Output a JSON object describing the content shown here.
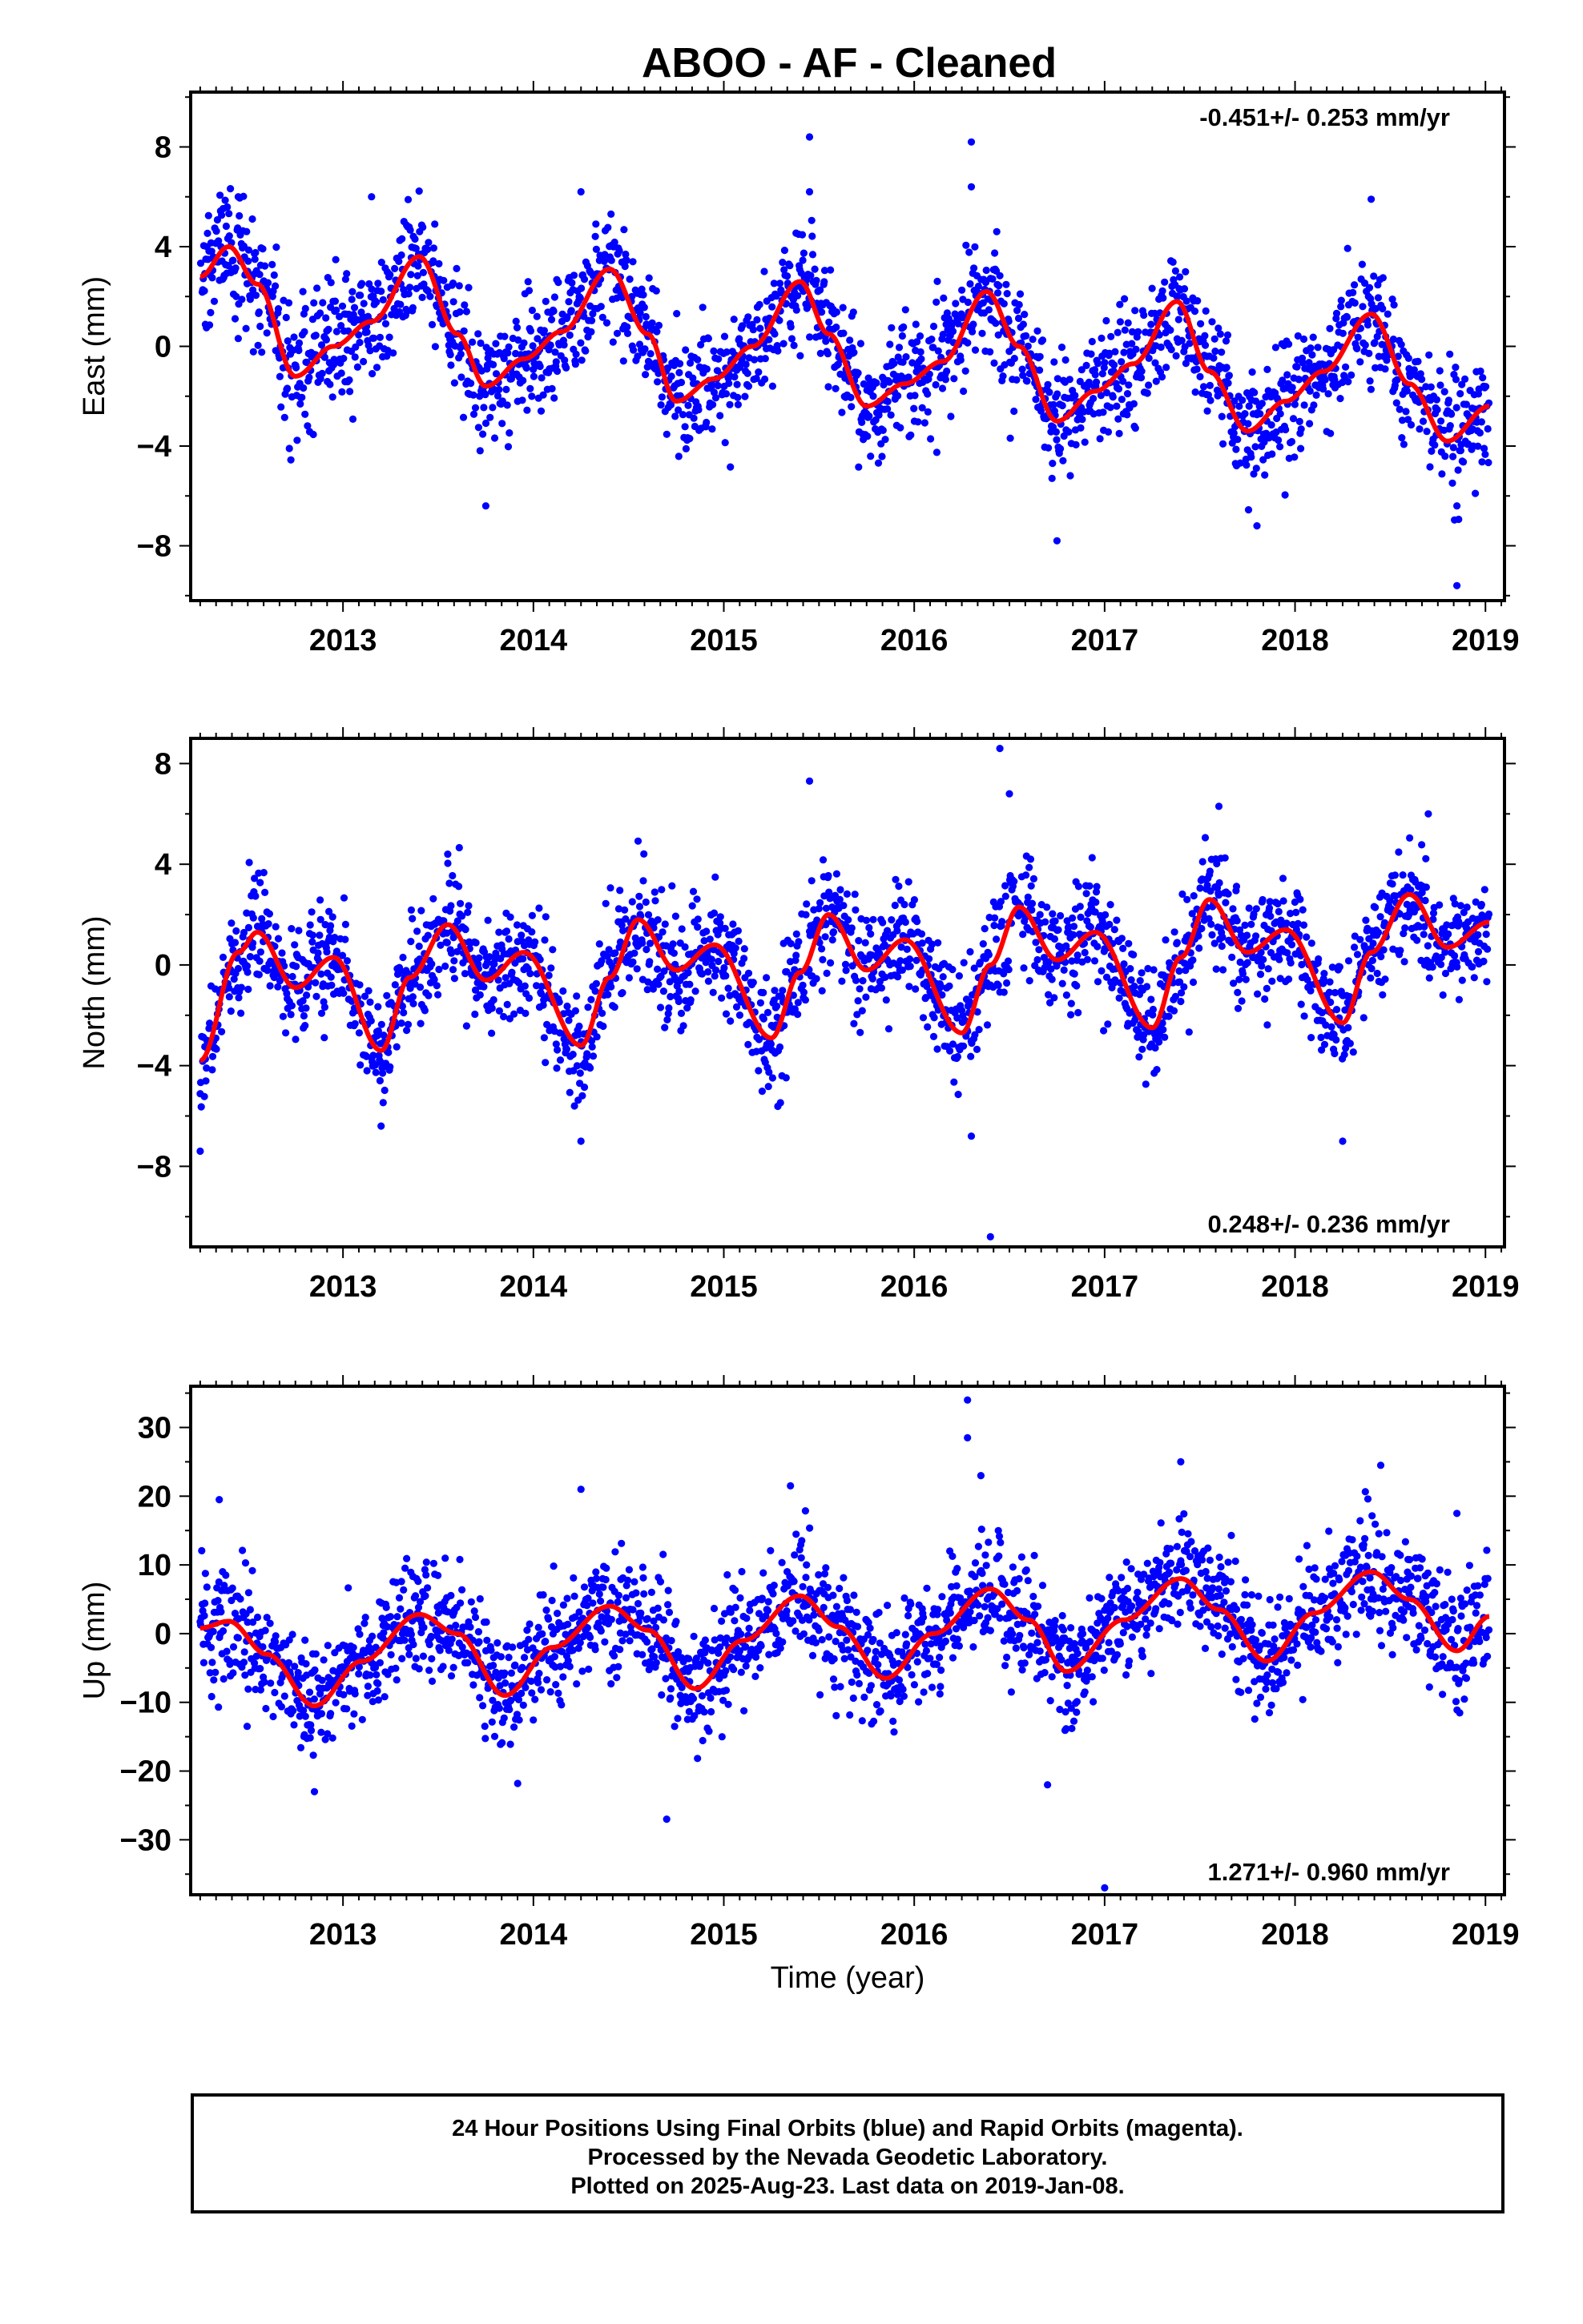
{
  "title": "ABOO  - AF - Cleaned",
  "xlabel": "Time (year)",
  "footer": {
    "line1": "24 Hour Positions Using Final Orbits (blue) and Rapid Orbits (magenta).",
    "line2": "Processed by the Nevada Geodetic Laboratory.",
    "line3": "Plotted on 2025-Aug-23. Last data on 2019-Jan-08."
  },
  "colors": {
    "observations": "#0000ff",
    "model_fit": "#ff0000",
    "axes": "#000000"
  },
  "chart_data": [
    {
      "type": "scatter",
      "panel": "east",
      "ylabel": "East (mm)",
      "rate_annotation": "-0.451+/- 0.253 mm/yr",
      "rate_annotation_position": "top-right",
      "xlim": [
        2012.2,
        2019.1
      ],
      "ylim": [
        -10.2,
        10.2
      ],
      "xticks": [
        2013,
        2014,
        2015,
        2016,
        2017,
        2018,
        2019
      ],
      "yticks": [
        -8,
        -4,
        0,
        4,
        8
      ],
      "series": [
        {
          "kind": "observations",
          "fit_knots": [
            [
              2012.25,
              2.8
            ],
            [
              2012.4,
              4.0
            ],
            [
              2012.55,
              2.5
            ],
            [
              2012.75,
              -1.2
            ],
            [
              2012.95,
              0.0
            ],
            [
              2013.15,
              1.0
            ],
            [
              2013.4,
              3.6
            ],
            [
              2013.6,
              0.5
            ],
            [
              2013.75,
              -1.6
            ],
            [
              2013.95,
              -0.5
            ],
            [
              2014.15,
              0.6
            ],
            [
              2014.4,
              3.1
            ],
            [
              2014.6,
              0.5
            ],
            [
              2014.75,
              -2.2
            ],
            [
              2014.95,
              -1.3
            ],
            [
              2015.15,
              0.0
            ],
            [
              2015.4,
              2.6
            ],
            [
              2015.55,
              0.5
            ],
            [
              2015.75,
              -2.4
            ],
            [
              2015.95,
              -1.5
            ],
            [
              2016.15,
              -0.6
            ],
            [
              2016.38,
              2.2
            ],
            [
              2016.55,
              0.0
            ],
            [
              2016.75,
              -3.0
            ],
            [
              2016.95,
              -1.8
            ],
            [
              2017.15,
              -0.7
            ],
            [
              2017.38,
              1.8
            ],
            [
              2017.55,
              -1.0
            ],
            [
              2017.75,
              -3.4
            ],
            [
              2017.95,
              -2.2
            ],
            [
              2018.15,
              -1.0
            ],
            [
              2018.4,
              1.3
            ],
            [
              2018.6,
              -1.5
            ],
            [
              2018.8,
              -3.8
            ],
            [
              2019.02,
              -2.4
            ]
          ],
          "noise_sd": 1.2,
          "outliers": [
            [
              2012.45,
              6.0
            ],
            [
              2013.15,
              6.0
            ],
            [
              2013.75,
              -6.4
            ],
            [
              2014.25,
              6.2
            ],
            [
              2015.45,
              8.4
            ],
            [
              2015.45,
              6.2
            ],
            [
              2016.3,
              8.2
            ],
            [
              2016.3,
              6.4
            ],
            [
              2016.75,
              -7.8
            ],
            [
              2017.8,
              -7.2
            ],
            [
              2018.4,
              5.9
            ],
            [
              2018.85,
              -9.6
            ],
            [
              2018.85,
              -6.4
            ]
          ]
        },
        {
          "kind": "model_fit"
        }
      ]
    },
    {
      "type": "scatter",
      "panel": "north",
      "ylabel": "North (mm)",
      "rate_annotation": "0.248+/- 0.236 mm/yr",
      "rate_annotation_position": "bottom-right",
      "xlim": [
        2012.2,
        2019.1
      ],
      "ylim": [
        -11.2,
        9.0
      ],
      "xticks": [
        2013,
        2014,
        2015,
        2016,
        2017,
        2018,
        2019
      ],
      "yticks": [
        -8,
        -4,
        0,
        4,
        8
      ],
      "series": [
        {
          "kind": "observations",
          "fit_knots": [
            [
              2012.25,
              -3.8
            ],
            [
              2012.45,
              0.5
            ],
            [
              2012.55,
              1.3
            ],
            [
              2012.75,
              -0.9
            ],
            [
              2012.95,
              0.3
            ],
            [
              2013.2,
              -3.4
            ],
            [
              2013.35,
              -0.5
            ],
            [
              2013.55,
              1.6
            ],
            [
              2013.75,
              -0.6
            ],
            [
              2013.95,
              0.5
            ],
            [
              2014.25,
              -3.2
            ],
            [
              2014.4,
              -0.5
            ],
            [
              2014.55,
              1.8
            ],
            [
              2014.75,
              -0.2
            ],
            [
              2014.95,
              0.8
            ],
            [
              2015.25,
              -2.9
            ],
            [
              2015.4,
              -0.3
            ],
            [
              2015.55,
              2.0
            ],
            [
              2015.75,
              -0.2
            ],
            [
              2015.95,
              1.0
            ],
            [
              2016.25,
              -2.7
            ],
            [
              2016.4,
              0.0
            ],
            [
              2016.55,
              2.3
            ],
            [
              2016.75,
              0.2
            ],
            [
              2016.95,
              1.3
            ],
            [
              2017.25,
              -2.5
            ],
            [
              2017.4,
              0.3
            ],
            [
              2017.55,
              2.6
            ],
            [
              2017.75,
              0.5
            ],
            [
              2017.95,
              1.4
            ],
            [
              2018.25,
              -2.3
            ],
            [
              2018.4,
              0.5
            ],
            [
              2018.6,
              2.8
            ],
            [
              2018.8,
              0.7
            ],
            [
              2019.02,
              1.7
            ]
          ],
          "noise_sd": 1.1,
          "outliers": [
            [
              2012.25,
              -7.4
            ],
            [
              2013.2,
              -6.4
            ],
            [
              2013.55,
              4.4
            ],
            [
              2014.25,
              -7.0
            ],
            [
              2015.45,
              7.3
            ],
            [
              2016.3,
              -6.8
            ],
            [
              2016.4,
              -10.8
            ],
            [
              2016.45,
              8.6
            ],
            [
              2016.5,
              6.8
            ],
            [
              2017.6,
              6.3
            ],
            [
              2018.25,
              -7.0
            ],
            [
              2018.7,
              6.0
            ]
          ]
        },
        {
          "kind": "model_fit"
        }
      ]
    },
    {
      "type": "scatter",
      "panel": "up",
      "ylabel": "Up (mm)",
      "rate_annotation": "1.271+/- 0.960 mm/yr",
      "rate_annotation_position": "bottom-right",
      "xlim": [
        2012.2,
        2019.1
      ],
      "ylim": [
        -38,
        36
      ],
      "xticks": [
        2013,
        2014,
        2015,
        2016,
        2017,
        2018,
        2019
      ],
      "yticks": [
        -30,
        -20,
        -10,
        0,
        10,
        20,
        30
      ],
      "series": [
        {
          "kind": "observations",
          "fit_knots": [
            [
              2012.25,
              0.8
            ],
            [
              2012.4,
              1.8
            ],
            [
              2012.6,
              -3.0
            ],
            [
              2012.85,
              -10.5
            ],
            [
              2013.1,
              -4.0
            ],
            [
              2013.4,
              2.8
            ],
            [
              2013.6,
              0.0
            ],
            [
              2013.85,
              -9.0
            ],
            [
              2014.1,
              -2.0
            ],
            [
              2014.4,
              4.0
            ],
            [
              2014.6,
              0.5
            ],
            [
              2014.85,
              -8.0
            ],
            [
              2015.1,
              -1.0
            ],
            [
              2015.4,
              5.5
            ],
            [
              2015.6,
              1.0
            ],
            [
              2015.85,
              -6.5
            ],
            [
              2016.1,
              0.0
            ],
            [
              2016.4,
              6.5
            ],
            [
              2016.6,
              2.0
            ],
            [
              2016.8,
              -5.5
            ],
            [
              2017.1,
              2.0
            ],
            [
              2017.4,
              8.0
            ],
            [
              2017.6,
              3.5
            ],
            [
              2017.85,
              -4.0
            ],
            [
              2018.1,
              3.0
            ],
            [
              2018.4,
              9.0
            ],
            [
              2018.6,
              5.0
            ],
            [
              2018.85,
              -2.5
            ],
            [
              2019.02,
              2.5
            ]
          ],
          "noise_sd": 4.3,
          "outliers": [
            [
              2012.35,
              19.5
            ],
            [
              2012.85,
              -23.0
            ],
            [
              2014.25,
              21.0
            ],
            [
              2014.7,
              -27.0
            ],
            [
              2015.35,
              21.5
            ],
            [
              2016.28,
              34.0
            ],
            [
              2016.28,
              28.5
            ],
            [
              2016.35,
              23.0
            ],
            [
              2016.7,
              -22.0
            ],
            [
              2017.4,
              25.0
            ],
            [
              2017.0,
              -37.0
            ],
            [
              2018.45,
              24.5
            ],
            [
              2018.85,
              17.5
            ]
          ]
        },
        {
          "kind": "model_fit"
        }
      ]
    }
  ]
}
